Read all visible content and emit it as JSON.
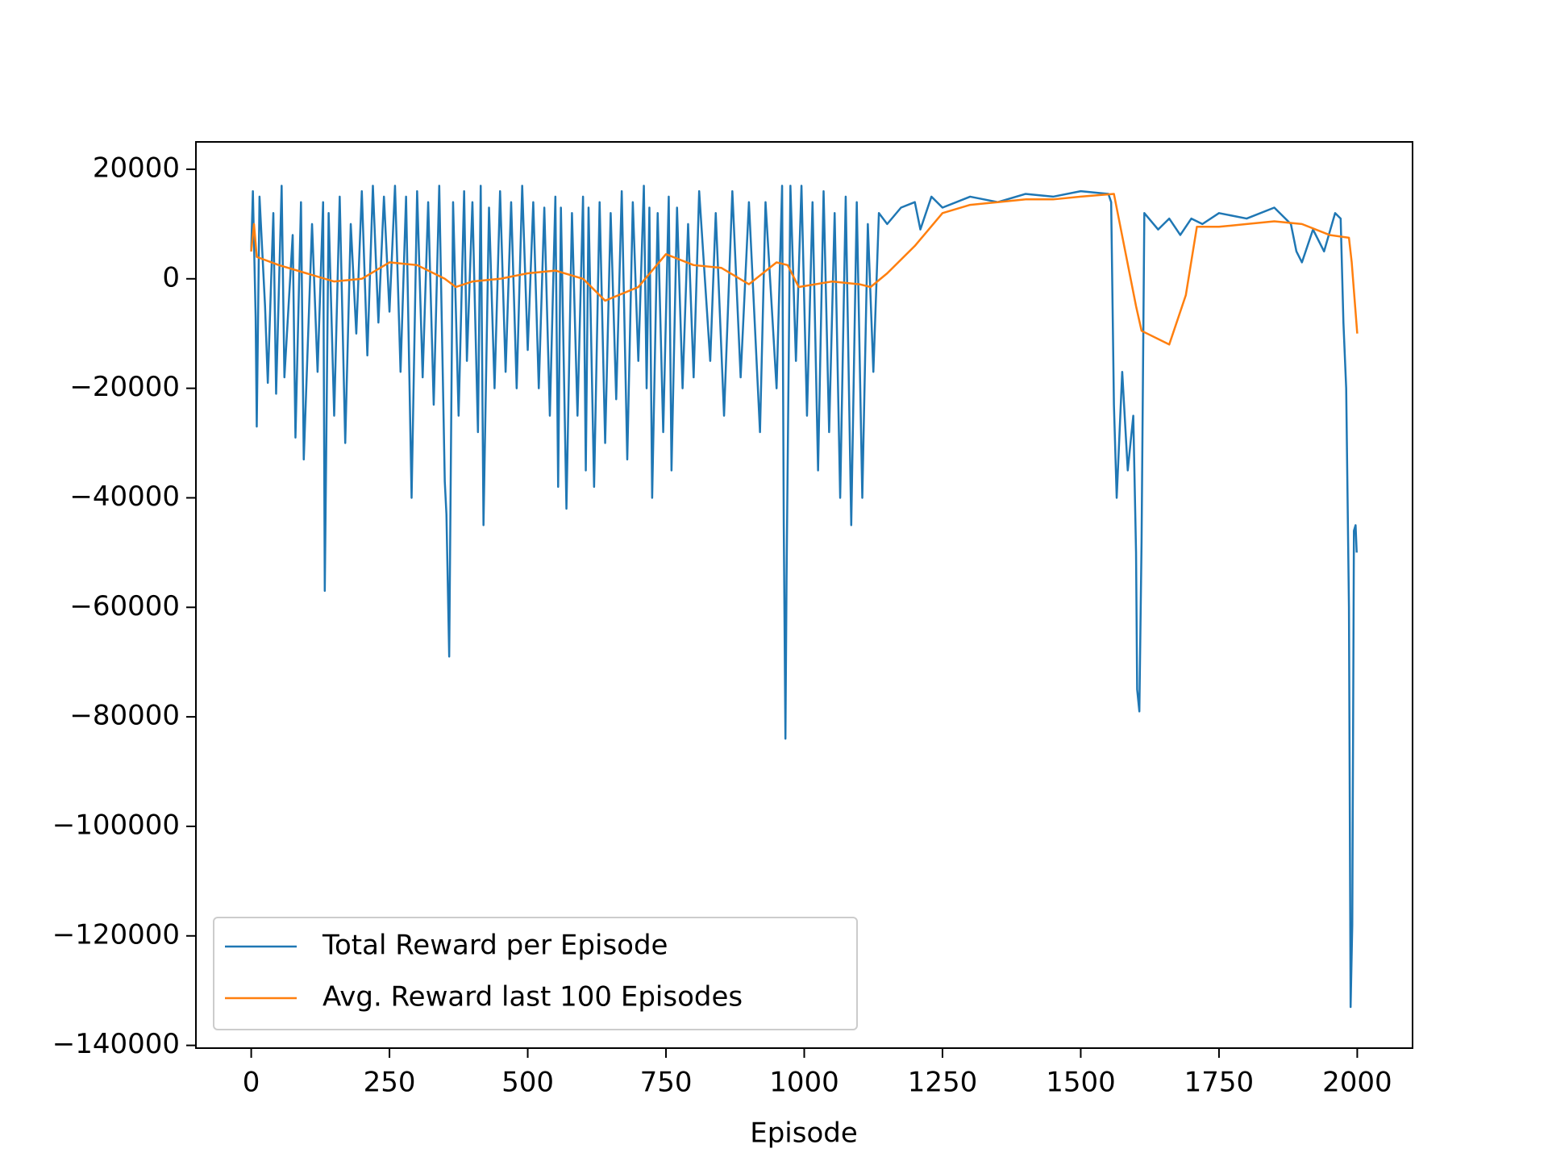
{
  "chart_data": {
    "type": "line",
    "xlabel": "Episode",
    "xlim": [
      -100,
      2100
    ],
    "ylim": [
      -140500,
      25000
    ],
    "xticks": [
      0,
      250,
      500,
      750,
      1000,
      1250,
      1500,
      1750,
      2000
    ],
    "yticks": [
      20000,
      0,
      {
        "value": -20000,
        "label": "−20000"
      },
      {
        "value": -40000,
        "label": "−40000"
      },
      {
        "value": -60000,
        "label": "−60000"
      },
      {
        "value": -80000,
        "label": "−80000"
      },
      {
        "value": -100000,
        "label": "−100000"
      },
      {
        "value": -120000,
        "label": "−120000"
      },
      {
        "value": -140000,
        "label": "−140000"
      }
    ],
    "legend": "lower left",
    "series": [
      {
        "name": "Total Reward per Episode",
        "color": "#1f77b4",
        "x": [
          0,
          3,
          8,
          10,
          15,
          25,
          30,
          40,
          45,
          55,
          60,
          75,
          80,
          90,
          95,
          110,
          120,
          130,
          133,
          140,
          150,
          160,
          170,
          180,
          190,
          200,
          210,
          220,
          230,
          240,
          250,
          260,
          270,
          280,
          290,
          300,
          310,
          320,
          330,
          340,
          350,
          353,
          358,
          365,
          375,
          385,
          390,
          400,
          410,
          415,
          420,
          430,
          440,
          450,
          460,
          470,
          480,
          490,
          500,
          510,
          520,
          530,
          540,
          550,
          555,
          560,
          570,
          580,
          590,
          600,
          605,
          610,
          620,
          630,
          640,
          650,
          660,
          670,
          680,
          690,
          700,
          710,
          715,
          720,
          725,
          735,
          745,
          755,
          760,
          770,
          780,
          790,
          800,
          810,
          830,
          840,
          855,
          870,
          885,
          900,
          920,
          930,
          950,
          960,
          963,
          966,
          968,
          975,
          985,
          995,
          1005,
          1015,
          1025,
          1035,
          1045,
          1055,
          1065,
          1075,
          1085,
          1095,
          1105,
          1115,
          1125,
          1135,
          1150,
          1175,
          1200,
          1210,
          1230,
          1250,
          1300,
          1350,
          1400,
          1450,
          1500,
          1550,
          1555,
          1560,
          1565,
          1575,
          1585,
          1595,
          1600,
          1602,
          1606,
          1610,
          1615,
          1640,
          1660,
          1680,
          1700,
          1720,
          1750,
          1800,
          1850,
          1880,
          1890,
          1900,
          1920,
          1940,
          1960,
          1970,
          1975,
          1980,
          1985,
          1988,
          1991,
          1994,
          1997,
          1999
        ],
        "values": [
          5000,
          16000,
          -7000,
          -27000,
          15000,
          -5000,
          -19000,
          12000,
          -21000,
          17000,
          -18000,
          8000,
          -29000,
          14000,
          -33000,
          10000,
          -17000,
          14000,
          -57000,
          12000,
          -25000,
          15000,
          -30000,
          10000,
          -10000,
          16000,
          -14000,
          17000,
          -8000,
          15000,
          -6000,
          17000,
          -17000,
          15000,
          -40000,
          16000,
          -18000,
          14000,
          -23000,
          17000,
          -37000,
          -43000,
          -69000,
          14000,
          -25000,
          16000,
          -15000,
          14000,
          -28000,
          17000,
          -45000,
          13000,
          -20000,
          16000,
          -17000,
          14000,
          -20000,
          17000,
          -13000,
          14000,
          -20000,
          13000,
          -25000,
          15000,
          -38000,
          13000,
          -42000,
          12000,
          -25000,
          15000,
          -35000,
          13000,
          -38000,
          14000,
          -30000,
          12000,
          -22000,
          16000,
          -33000,
          14000,
          -15000,
          17000,
          -20000,
          13000,
          -40000,
          12000,
          -28000,
          15000,
          -35000,
          13000,
          -20000,
          10000,
          -18000,
          16000,
          -15000,
          12000,
          -25000,
          16000,
          -18000,
          14000,
          -28000,
          14000,
          -20000,
          17000,
          -45000,
          -84000,
          -55000,
          17000,
          -15000,
          17000,
          -25000,
          14000,
          -35000,
          16000,
          -28000,
          12000,
          -40000,
          15000,
          -45000,
          14000,
          -40000,
          10000,
          -17000,
          12000,
          10000,
          13000,
          14000,
          9000,
          15000,
          13000,
          15000,
          14000,
          15500,
          15000,
          16000,
          15500,
          14000,
          -23000,
          -40000,
          -17000,
          -35000,
          -25000,
          -50000,
          -75000,
          -79000,
          -48000,
          12000,
          9000,
          11000,
          8000,
          11000,
          10000,
          12000,
          11000,
          13000,
          10000,
          5000,
          3000,
          9000,
          5000,
          12000,
          11000,
          -8000,
          -20000,
          -60000,
          -133000,
          -118000,
          -46000,
          -45000,
          -50000
        ]
      },
      {
        "name": "Avg. Reward last 100 Episodes",
        "color": "#ff7f0e",
        "x": [
          0,
          5,
          10,
          50,
          100,
          150,
          200,
          250,
          300,
          350,
          370,
          400,
          450,
          500,
          550,
          600,
          640,
          700,
          750,
          800,
          850,
          900,
          950,
          970,
          990,
          1050,
          1100,
          1120,
          1150,
          1200,
          1250,
          1300,
          1350,
          1400,
          1450,
          1500,
          1560,
          1600,
          1610,
          1660,
          1690,
          1710,
          1750,
          1800,
          1850,
          1900,
          1950,
          1985,
          1990,
          2000
        ],
        "values": [
          5000,
          10000,
          4000,
          2500,
          1000,
          -500,
          0,
          3000,
          2500,
          0,
          -1500,
          -500,
          0,
          1000,
          1500,
          0,
          -4000,
          -1500,
          4500,
          2500,
          2000,
          -1000,
          3000,
          2500,
          -1500,
          -500,
          -1000,
          -1500,
          1000,
          6000,
          12000,
          13500,
          14000,
          14500,
          14500,
          15000,
          15500,
          -5000,
          -9500,
          -12000,
          -3000,
          9500,
          9500,
          10000,
          10500,
          10000,
          8000,
          7500,
          3000,
          -10000
        ]
      }
    ]
  }
}
